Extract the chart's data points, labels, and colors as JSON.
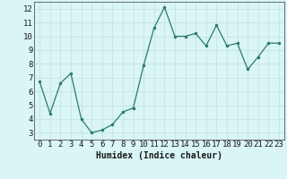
{
  "x": [
    0,
    1,
    2,
    3,
    4,
    5,
    6,
    7,
    8,
    9,
    10,
    11,
    12,
    13,
    14,
    15,
    16,
    17,
    18,
    19,
    20,
    21,
    22,
    23
  ],
  "y": [
    6.7,
    4.4,
    6.6,
    7.3,
    4.0,
    3.0,
    3.2,
    3.6,
    4.5,
    4.8,
    7.9,
    10.6,
    12.1,
    10.0,
    10.0,
    10.2,
    9.3,
    10.8,
    9.3,
    9.5,
    7.6,
    8.5,
    9.5,
    9.5
  ],
  "line_color": "#2d7a6e",
  "bg_color": "#d9f5f5",
  "grid_color": "#c0e0e0",
  "xlabel": "Humidex (Indice chaleur)",
  "xlim": [
    -0.5,
    23.5
  ],
  "ylim": [
    2.5,
    12.5
  ],
  "yticks": [
    3,
    4,
    5,
    6,
    7,
    8,
    9,
    10,
    11,
    12
  ],
  "xticks": [
    0,
    1,
    2,
    3,
    4,
    5,
    6,
    7,
    8,
    9,
    10,
    11,
    12,
    13,
    14,
    15,
    16,
    17,
    18,
    19,
    20,
    21,
    22,
    23
  ],
  "xlabel_fontsize": 7,
  "tick_fontsize": 6.5
}
